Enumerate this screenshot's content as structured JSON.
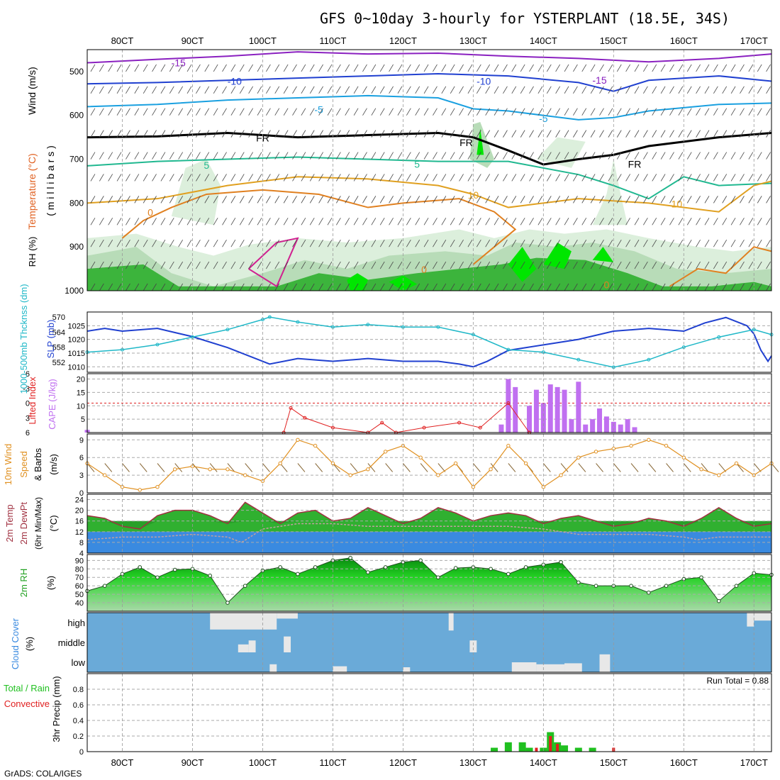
{
  "title": "GFS 0~10day 3-hourly for YSTERPLANT (18.5E, 34S)",
  "footer": "GrADS: COLA/IGES",
  "run_total_label": "Run Total = 0.88",
  "colors": {
    "rh_light": "#dcefdc",
    "rh_mid": "#b8dcb8",
    "rh_green": "#3cb43c",
    "rh_bright": "#00e600",
    "cape": "#c070f0",
    "slp": "#2040d0",
    "thick": "#20b8c8",
    "wind": "#e09020",
    "li": "#e02020",
    "temp_line": "#a03040",
    "cloud": "#6aaad8",
    "cloud_fill": "#e8e8e8",
    "precip_total": "#20c020",
    "precip_conv": "#e02020"
  },
  "x_axis": {
    "tick_labels": [
      "80CT",
      "90CT",
      "100CT",
      "110CT",
      "120CT",
      "130CT",
      "140CT",
      "150CT",
      "160CT",
      "170CT"
    ],
    "start_day": 7.5,
    "end_day": 17.25
  },
  "panels": {
    "p1": {
      "ylabel_rh": "RH (%)",
      "ylabel_temp": "Temperature (°C)",
      "ylabel_wind": "Wind (m/s)",
      "ylabel_mb": "( m i l l i b a r s )",
      "ticks": [
        "500",
        "600",
        "700",
        "800",
        "900",
        "1000"
      ]
    },
    "p2": {
      "ylabel_thick": "1000-500mb Thcknss (dm)",
      "ylabel_slp": "SLP (mb)",
      "ticks_left": [
        "570",
        "564",
        "558",
        "552"
      ],
      "ticks_right": [
        "1025",
        "1020",
        "1015",
        "1010"
      ]
    },
    "p3": {
      "ylabel_li": "Lifted Index",
      "ylabel_cape": "CAPE (J/kg)",
      "ticks_left": [
        "-6",
        "-3",
        "0",
        "3",
        "6"
      ],
      "ticks_right": [
        "20",
        "15",
        "10",
        "5"
      ]
    },
    "p4": {
      "ylabel_1": "10m Wind",
      "ylabel_2": "Speed",
      "ylabel_3": "& Barbs",
      "ylabel_unit": "(m/s)",
      "ticks": [
        "9",
        "6",
        "3",
        "0"
      ]
    },
    "p5": {
      "ylabel_1": "2m Temp",
      "ylabel_2": "2m DewPt",
      "ylabel_3": "(6hr Min/Max)",
      "ylabel_unit": "(°C)",
      "ticks": [
        "24",
        "20",
        "16",
        "12",
        "8",
        "4"
      ]
    },
    "p6": {
      "ylabel_1": "2m RH",
      "ylabel_unit": "(%)",
      "ticks": [
        "90",
        "80",
        "70",
        "60",
        "50",
        "40"
      ]
    },
    "p7": {
      "ylabel_1": "Cloud Cover",
      "ylabel_unit": "(%)",
      "levels": [
        "high",
        "middle",
        "low"
      ]
    },
    "p8": {
      "ylabel_1": "Total / Rain",
      "ylabel_2": "Convective",
      "ylabel_unit": "3hr Precip (mm)",
      "ticks": [
        "0.8",
        "0.6",
        "0.4",
        "0.2",
        "0"
      ]
    }
  },
  "upper_labels": [
    "-15",
    "-10",
    "-5",
    "-10",
    "-15",
    "-5",
    "FR",
    "FR",
    "FR",
    "5",
    "5",
    "10",
    "10",
    "0",
    "0",
    "0"
  ],
  "chart_data": {
    "type": "meteogram",
    "slp": [
      [
        7.5,
        1023
      ],
      [
        7.75,
        1024
      ],
      [
        8.0,
        1023
      ],
      [
        8.5,
        1024
      ],
      [
        9.0,
        1021
      ],
      [
        9.5,
        1017
      ],
      [
        10.0,
        1012
      ],
      [
        10.1,
        1011
      ],
      [
        10.5,
        1013
      ],
      [
        11.0,
        1012
      ],
      [
        11.5,
        1013
      ],
      [
        12.0,
        1012
      ],
      [
        12.5,
        1012
      ],
      [
        12.8,
        1011
      ],
      [
        13.0,
        1010
      ],
      [
        13.2,
        1012
      ],
      [
        13.5,
        1016
      ],
      [
        14.0,
        1018
      ],
      [
        14.5,
        1020
      ],
      [
        15.0,
        1023
      ],
      [
        15.5,
        1024
      ],
      [
        16.0,
        1023
      ],
      [
        16.3,
        1026
      ],
      [
        16.6,
        1028
      ],
      [
        16.9,
        1025
      ],
      [
        17.0,
        1022
      ],
      [
        17.1,
        1016
      ],
      [
        17.2,
        1012
      ],
      [
        17.25,
        1014
      ]
    ],
    "thickness": [
      [
        7.5,
        556
      ],
      [
        8.0,
        557
      ],
      [
        8.5,
        559
      ],
      [
        9.0,
        562
      ],
      [
        9.5,
        565
      ],
      [
        10.0,
        569
      ],
      [
        10.1,
        570
      ],
      [
        10.5,
        568
      ],
      [
        11.0,
        566
      ],
      [
        11.5,
        567
      ],
      [
        12.0,
        566
      ],
      [
        12.5,
        566
      ],
      [
        13.0,
        563
      ],
      [
        13.5,
        557
      ],
      [
        14.0,
        556
      ],
      [
        14.5,
        553
      ],
      [
        15.0,
        550
      ],
      [
        15.5,
        553
      ],
      [
        16.0,
        558
      ],
      [
        16.5,
        562
      ],
      [
        17.0,
        565
      ],
      [
        17.25,
        563
      ]
    ],
    "lifted_index": [
      [
        10.3,
        6
      ],
      [
        10.4,
        1
      ],
      [
        10.6,
        3
      ],
      [
        11.0,
        5
      ],
      [
        11.5,
        6
      ],
      [
        11.7,
        4
      ],
      [
        11.9,
        6
      ],
      [
        12.3,
        5
      ],
      [
        12.8,
        4
      ],
      [
        13.1,
        5
      ],
      [
        13.5,
        0
      ],
      [
        13.8,
        6
      ]
    ],
    "cape": [
      [
        7.5,
        1
      ],
      [
        13.4,
        3
      ],
      [
        13.5,
        20
      ],
      [
        13.6,
        17
      ],
      [
        13.8,
        10
      ],
      [
        13.9,
        16
      ],
      [
        14.0,
        11
      ],
      [
        14.1,
        18
      ],
      [
        14.2,
        17
      ],
      [
        14.3,
        16
      ],
      [
        14.4,
        5
      ],
      [
        14.5,
        19
      ],
      [
        14.6,
        3
      ],
      [
        14.7,
        5
      ],
      [
        14.8,
        9
      ],
      [
        14.9,
        6
      ],
      [
        15.0,
        4
      ],
      [
        15.1,
        3
      ],
      [
        15.2,
        5
      ],
      [
        15.3,
        2
      ]
    ],
    "wind_speed": [
      [
        7.5,
        5
      ],
      [
        7.75,
        3
      ],
      [
        8.0,
        1
      ],
      [
        8.25,
        0.5
      ],
      [
        8.5,
        1
      ],
      [
        8.75,
        4
      ],
      [
        9.0,
        4.5
      ],
      [
        9.25,
        4
      ],
      [
        9.5,
        4
      ],
      [
        9.75,
        3
      ],
      [
        10.0,
        2
      ],
      [
        10.25,
        5
      ],
      [
        10.5,
        9
      ],
      [
        10.75,
        8
      ],
      [
        11.0,
        5
      ],
      [
        11.25,
        3
      ],
      [
        11.5,
        4
      ],
      [
        11.75,
        7
      ],
      [
        12.0,
        8
      ],
      [
        12.25,
        6
      ],
      [
        12.5,
        3
      ],
      [
        12.75,
        5
      ],
      [
        13.0,
        1
      ],
      [
        13.25,
        4
      ],
      [
        13.5,
        8
      ],
      [
        13.75,
        5
      ],
      [
        14.0,
        1
      ],
      [
        14.25,
        3
      ],
      [
        14.5,
        6
      ],
      [
        14.75,
        7
      ],
      [
        15.0,
        7.5
      ],
      [
        15.25,
        8
      ],
      [
        15.5,
        9
      ],
      [
        15.75,
        8
      ],
      [
        16.0,
        6
      ],
      [
        16.25,
        4
      ],
      [
        16.5,
        3
      ],
      [
        16.75,
        5
      ],
      [
        17.0,
        3
      ],
      [
        17.25,
        5
      ]
    ],
    "temp_2m": [
      [
        7.5,
        18
      ],
      [
        7.75,
        17
      ],
      [
        8.0,
        14
      ],
      [
        8.25,
        13
      ],
      [
        8.5,
        18
      ],
      [
        8.75,
        20
      ],
      [
        9.0,
        20
      ],
      [
        9.25,
        18
      ],
      [
        9.5,
        15
      ],
      [
        9.75,
        23
      ],
      [
        10.0,
        19
      ],
      [
        10.25,
        15
      ],
      [
        10.5,
        19
      ],
      [
        10.75,
        20
      ],
      [
        11.0,
        16
      ],
      [
        11.25,
        17
      ],
      [
        11.5,
        21
      ],
      [
        11.75,
        18
      ],
      [
        12.0,
        15
      ],
      [
        12.25,
        17
      ],
      [
        12.5,
        21
      ],
      [
        12.75,
        19
      ],
      [
        13.0,
        16
      ],
      [
        13.25,
        18
      ],
      [
        13.5,
        19
      ],
      [
        13.75,
        18
      ],
      [
        14.0,
        15
      ],
      [
        14.25,
        17
      ],
      [
        14.5,
        18
      ],
      [
        14.75,
        16
      ],
      [
        15.0,
        14
      ],
      [
        15.25,
        15
      ],
      [
        15.5,
        17
      ],
      [
        15.75,
        16
      ],
      [
        16.0,
        14
      ],
      [
        16.25,
        17
      ],
      [
        16.5,
        21
      ],
      [
        16.75,
        17
      ],
      [
        17.0,
        14
      ],
      [
        17.25,
        15
      ]
    ],
    "dewpt_2m": [
      [
        7.5,
        9
      ],
      [
        8.0,
        10
      ],
      [
        8.5,
        10
      ],
      [
        9.0,
        11
      ],
      [
        9.5,
        10
      ],
      [
        9.7,
        8
      ],
      [
        10.0,
        13
      ],
      [
        10.5,
        15
      ],
      [
        11.0,
        15
      ],
      [
        11.5,
        14
      ],
      [
        12.0,
        14
      ],
      [
        12.5,
        14
      ],
      [
        13.0,
        14
      ],
      [
        13.5,
        14
      ],
      [
        14.0,
        13
      ],
      [
        14.5,
        11
      ],
      [
        15.0,
        11
      ],
      [
        15.5,
        11
      ],
      [
        16.0,
        10
      ],
      [
        16.2,
        9
      ],
      [
        16.5,
        10
      ],
      [
        17.0,
        10
      ],
      [
        17.25,
        10
      ]
    ],
    "rh_2m": [
      [
        7.5,
        54
      ],
      [
        7.75,
        60
      ],
      [
        8.0,
        74
      ],
      [
        8.25,
        82
      ],
      [
        8.5,
        70
      ],
      [
        8.75,
        79
      ],
      [
        9.0,
        80
      ],
      [
        9.25,
        72
      ],
      [
        9.5,
        40
      ],
      [
        9.75,
        60
      ],
      [
        10.0,
        78
      ],
      [
        10.25,
        82
      ],
      [
        10.5,
        74
      ],
      [
        10.75,
        82
      ],
      [
        11.0,
        90
      ],
      [
        11.25,
        93
      ],
      [
        11.5,
        76
      ],
      [
        11.75,
        82
      ],
      [
        12.0,
        88
      ],
      [
        12.25,
        90
      ],
      [
        12.5,
        70
      ],
      [
        12.75,
        81
      ],
      [
        13.0,
        82
      ],
      [
        13.25,
        80
      ],
      [
        13.5,
        74
      ],
      [
        13.75,
        82
      ],
      [
        14.0,
        85
      ],
      [
        14.25,
        88
      ],
      [
        14.5,
        64
      ],
      [
        14.75,
        60
      ],
      [
        15.0,
        60
      ],
      [
        15.25,
        60
      ],
      [
        15.5,
        52
      ],
      [
        15.75,
        60
      ],
      [
        16.0,
        68
      ],
      [
        16.25,
        70
      ],
      [
        16.5,
        42
      ],
      [
        16.75,
        60
      ],
      [
        17.0,
        75
      ],
      [
        17.25,
        73
      ]
    ],
    "precip_total": [
      [
        13.3,
        0.05
      ],
      [
        13.5,
        0.12
      ],
      [
        13.7,
        0.12
      ],
      [
        13.8,
        0.05
      ],
      [
        14.0,
        0.05
      ],
      [
        14.1,
        0.25
      ],
      [
        14.2,
        0.12
      ],
      [
        14.3,
        0.08
      ],
      [
        14.5,
        0.05
      ],
      [
        14.7,
        0.05
      ]
    ],
    "precip_conv": [
      [
        13.9,
        0.05
      ],
      [
        14.1,
        0.2
      ],
      [
        14.2,
        0.1
      ],
      [
        15.0,
        0.05
      ]
    ]
  }
}
